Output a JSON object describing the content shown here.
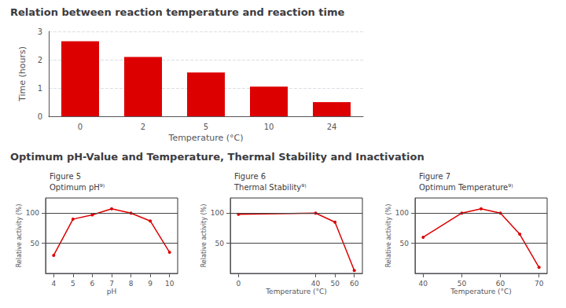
{
  "chart_data": [
    {
      "type": "bar",
      "title": "Relation between reaction temperature and reaction time",
      "categories": [
        "0",
        "2",
        "5",
        "10",
        "24"
      ],
      "values": [
        2.65,
        2.1,
        1.55,
        1.05,
        0.5
      ],
      "color": "#dd0000",
      "xlabel": "Temperature (°C)",
      "ylabel": "Time (hours)",
      "ylim": [
        0,
        3
      ],
      "yticks": [
        0,
        1,
        2,
        3
      ],
      "grid": true
    },
    {
      "type": "line",
      "title": "Figure 5\nOptimum pH⁹⁾",
      "annotations": [
        "Optimum pH-Value and Temperature, Thermal Stability and Inactivation"
      ],
      "x": [
        4,
        5,
        6,
        7,
        8,
        9,
        10
      ],
      "values": [
        30,
        90,
        97,
        107,
        100,
        87,
        35
      ],
      "color": "#dd0000",
      "marker": "circle",
      "xlabel": "pH",
      "ylabel": "Relative activity (%)",
      "xlim": [
        3.58,
        10.42
      ],
      "xticks": [
        4,
        5,
        6,
        7,
        8,
        9,
        10
      ],
      "ylim": [
        0,
        125
      ],
      "yticks": [
        50,
        100
      ],
      "grid": true
    },
    {
      "type": "line",
      "title": "Figure 6\nThermal Stability⁹⁾",
      "x": [
        0,
        40,
        50,
        60
      ],
      "values": [
        98,
        100,
        85,
        5
      ],
      "color": "#dd0000",
      "marker": "circle",
      "xlabel": "Temperature (°C)",
      "ylabel": "Relative activity (%)",
      "xlim": [
        -4.2,
        64.2
      ],
      "xticks": [
        0,
        40,
        50,
        60
      ],
      "ylim": [
        0,
        125
      ],
      "yticks": [
        50,
        100
      ],
      "grid": true
    },
    {
      "type": "line",
      "title": "Figure 7\nOptimum Temperature⁹⁾",
      "x": [
        40,
        50,
        55,
        60,
        65,
        70
      ],
      "values": [
        60,
        100,
        107,
        100,
        65,
        10
      ],
      "color": "#dd0000",
      "marker": "circle",
      "xlabel": "Temperature (°C)",
      "ylabel": "Relative activity (%)",
      "xlim": [
        37.9,
        72.1
      ],
      "xticks": [
        40,
        50,
        60,
        70
      ],
      "ylim": [
        0,
        125
      ],
      "yticks": [
        50,
        100
      ],
      "grid": true
    }
  ]
}
